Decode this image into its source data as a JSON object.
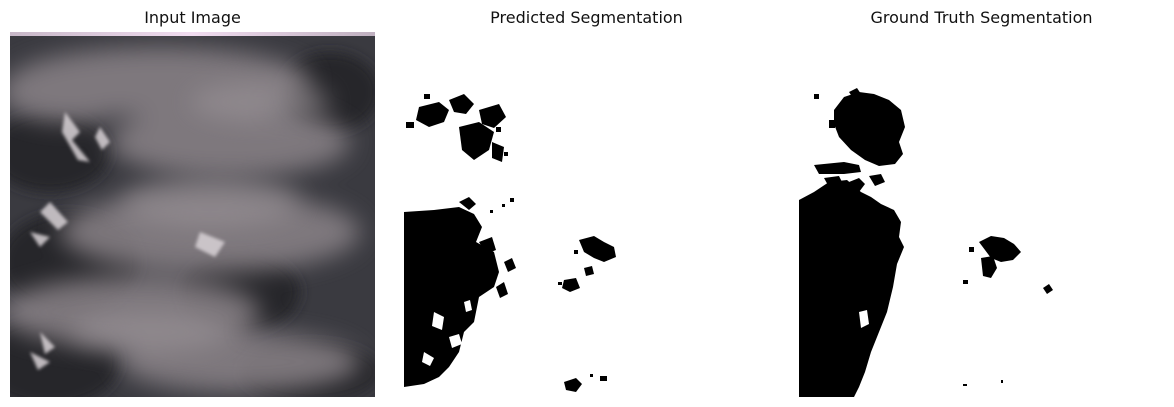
{
  "figure": {
    "panels": [
      {
        "title": "Input Image"
      },
      {
        "title": "Predicted Segmentation"
      },
      {
        "title": "Ground Truth Segmentation"
      }
    ]
  }
}
